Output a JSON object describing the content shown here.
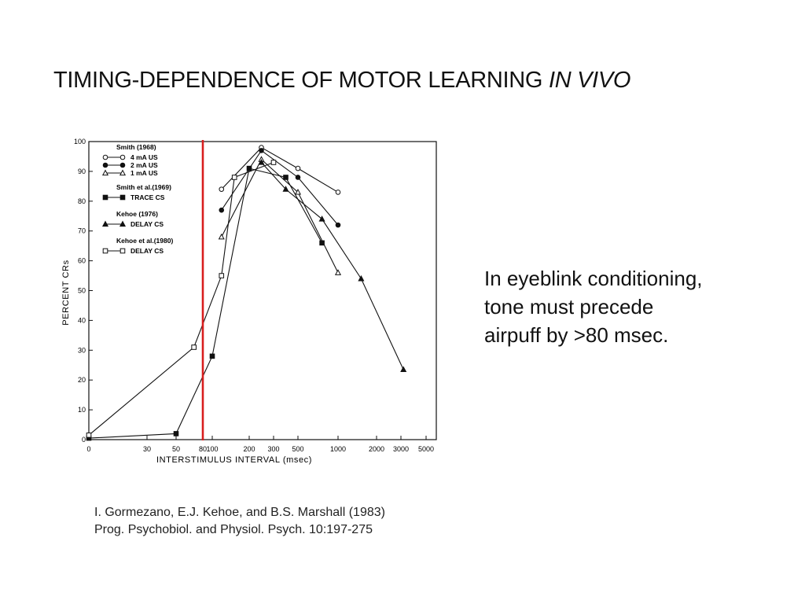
{
  "slide": {
    "title_main": "TIMING-DEPENDENCE OF MOTOR LEARNING ",
    "title_emphasis": "IN VIVO",
    "bullet_lines": [
      "In eyeblink conditioning,",
      "tone must precede",
      "airpuff by >80 msec."
    ],
    "citation_lines": [
      "I. Gormezano, E.J. Kehoe, and B.S. Marshall (1983)",
      "Prog. Psychobiol. and Physiol. Psych. 10:197-275"
    ],
    "highlight_color": "#d81e1e"
  },
  "chart_data": {
    "type": "line",
    "title": "",
    "xlabel": "INTERSTIMULUS  INTERVAL (msec)",
    "ylabel": "PERCENT   CRs",
    "ylim": [
      0,
      100
    ],
    "yticks": [
      0,
      10,
      20,
      30,
      40,
      50,
      60,
      70,
      80,
      90,
      100
    ],
    "xticks": [
      "0",
      "30",
      "50",
      "80",
      "100",
      "200",
      "300",
      "500",
      "1000",
      "2000",
      "3000",
      "5000"
    ],
    "x_scale": "non-linear (log-like) interval axis",
    "grid": false,
    "legend_placement": "top-left",
    "legend_groups": [
      {
        "header": "Smith (1968)",
        "items": [
          {
            "label": "4 mA  US",
            "marker": "open-circle"
          },
          {
            "label": "2 mA  US",
            "marker": "filled-circle"
          },
          {
            "label": "1 mA  US",
            "marker": "open-triangle"
          }
        ]
      },
      {
        "header": "Smith et al.(1969)",
        "items": [
          {
            "label": "TRACE  CS",
            "marker": "filled-square"
          }
        ]
      },
      {
        "header": "Kehoe (1976)",
        "items": [
          {
            "label": "DELAY  CS",
            "marker": "filled-triangle"
          }
        ]
      },
      {
        "header": "Kehoe et al.(1980)",
        "items": [
          {
            "label": "DELAY  CS",
            "marker": "open-square"
          }
        ]
      }
    ],
    "series": [
      {
        "name": "4 mA  US",
        "marker": "open-circle",
        "points": [
          [
            125,
            84
          ],
          [
            250,
            98
          ],
          [
            500,
            91
          ],
          [
            1000,
            83
          ]
        ]
      },
      {
        "name": "2 mA  US",
        "marker": "filled-circle",
        "points": [
          [
            125,
            77
          ],
          [
            250,
            97
          ],
          [
            500,
            88
          ],
          [
            1000,
            72
          ]
        ]
      },
      {
        "name": "1 mA  US",
        "marker": "open-triangle",
        "points": [
          [
            125,
            68
          ],
          [
            250,
            94
          ],
          [
            500,
            83
          ],
          [
            1000,
            56
          ]
        ]
      },
      {
        "name": "TRACE  CS",
        "marker": "filled-square",
        "points": [
          [
            0,
            0.5
          ],
          [
            50,
            2
          ],
          [
            100,
            28
          ],
          [
            200,
            91
          ],
          [
            400,
            88
          ],
          [
            800,
            66
          ]
        ]
      },
      {
        "name": "DELAY  CS",
        "marker": "filled-triangle",
        "points": [
          [
            250,
            93
          ],
          [
            400,
            84
          ],
          [
            800,
            74
          ],
          [
            1600,
            54
          ],
          [
            3200,
            23.5
          ]
        ]
      },
      {
        "name": "DELAY  CS",
        "marker": "open-square",
        "points": [
          [
            0,
            1.5
          ],
          [
            70,
            31
          ],
          [
            125,
            55
          ],
          [
            160,
            88
          ],
          [
            300,
            93
          ]
        ]
      }
    ],
    "annotations": [
      {
        "type": "vertical-line",
        "x": 80,
        "color": "#d81e1e"
      }
    ]
  }
}
